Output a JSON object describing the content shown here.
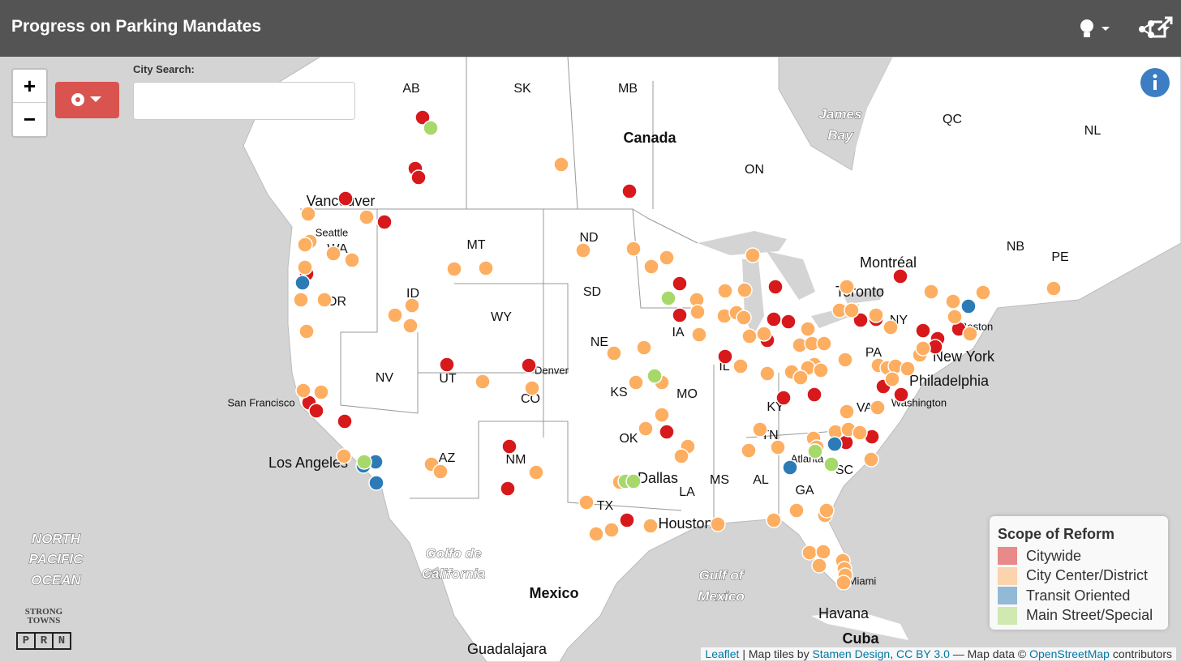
{
  "header": {
    "title": "Progress on Parking Mandates"
  },
  "controls": {
    "zoom_in": "+",
    "zoom_out": "−",
    "city_search_label": "City Search:"
  },
  "map": {
    "labels": [
      "AB",
      "SK",
      "MB",
      "Canada",
      "James",
      "Bay",
      "QC",
      "NL",
      "ON",
      "Vancouver",
      "Seattle",
      "WA",
      "MT",
      "ND",
      "NB",
      "PE",
      "Montréal",
      "Toronto",
      "OR",
      "ID",
      "SD",
      "WY",
      "NE",
      "IA",
      "IL",
      "PA",
      "NY",
      "New York",
      "Boston",
      "Philadelphia",
      "NV",
      "UT",
      "Denver",
      "CO",
      "KS",
      "MO",
      "KY",
      "Washington",
      "San Francisco",
      "VA",
      "TN",
      "OK",
      "AZ",
      "NM",
      "Los Angeles",
      "Atlanta",
      "SC",
      "Dallas",
      "MS",
      "AL",
      "GA",
      "LA",
      "TX",
      "Houston",
      "Miami",
      "NORTH",
      "PACIFIC",
      "OCEAN",
      "Golfo de",
      "California",
      "Gulf of",
      "Mexico",
      "Mexico",
      "Havana",
      "Cuba",
      "Guadalajara"
    ]
  },
  "legend": {
    "title": "Scope of Reform",
    "items": [
      {
        "label": "Citywide",
        "color": "#d7191c"
      },
      {
        "label": "City Center/District",
        "color": "#fdae61"
      },
      {
        "label": "Transit Oriented",
        "color": "#2c7bb6"
      },
      {
        "label": "Main Street/Special",
        "color": "#a6d96a"
      }
    ]
  },
  "logo": {
    "line1": "STRONG",
    "line2": "TOWNS",
    "letters": [
      "P",
      "R",
      "N"
    ]
  },
  "attribution": {
    "leaflet": "Leaflet",
    "sep": " | Map tiles by ",
    "stamen": "Stamen Design",
    "comma": ", ",
    "cc": "CC BY 3.0",
    "dash": " — Map data © ",
    "osm": "OpenStreetMap",
    "end": " contributors"
  }
}
